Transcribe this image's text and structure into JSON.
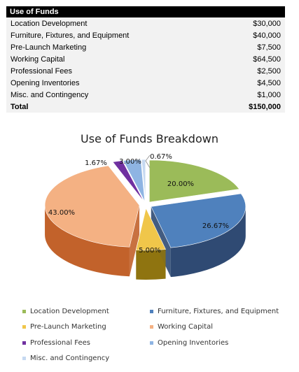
{
  "table": {
    "header": "Use of Funds",
    "rows": [
      {
        "label": "Location Development",
        "value": "$30,000"
      },
      {
        "label": "Furniture, Fixtures, and Equipment",
        "value": "$40,000"
      },
      {
        "label": "Pre-Launch Marketing",
        "value": "$7,500"
      },
      {
        "label": "Working Capital",
        "value": "$64,500"
      },
      {
        "label": "Professional Fees",
        "value": "$2,500"
      },
      {
        "label": "Opening Inventories",
        "value": "$4,500"
      },
      {
        "label": "Misc. and Contingency",
        "value": "$1,000"
      }
    ],
    "total": {
      "label": "Total",
      "value": "$150,000"
    }
  },
  "chart_data": {
    "type": "pie",
    "title": "Use of Funds Breakdown",
    "style": "3d-exploded",
    "legend_position": "bottom",
    "categories": [
      "Location Development",
      "Furniture, Fixtures, and Equipment",
      "Pre-Launch Marketing",
      "Working Capital",
      "Professional Fees",
      "Opening Inventories",
      "Misc. and Contingency"
    ],
    "values": [
      30000,
      40000,
      7500,
      64500,
      2500,
      4500,
      1000
    ],
    "data_labels": [
      "20.00%",
      "26.67%",
      "5.00%",
      "43.00%",
      "1.67%",
      "3.00%",
      "0.67%"
    ],
    "colors": [
      "#9bbb59",
      "#4f81bd",
      "#f0c64a",
      "#f4b183",
      "#7030a0",
      "#8eb4e3",
      "#c6d9f1"
    ],
    "side_colors": [
      "#6e8a3c",
      "#2f4a73",
      "#8f7410",
      "#c2622b",
      "#4a1f6b",
      "#5a7ca0",
      "#8ea4c0"
    ]
  }
}
